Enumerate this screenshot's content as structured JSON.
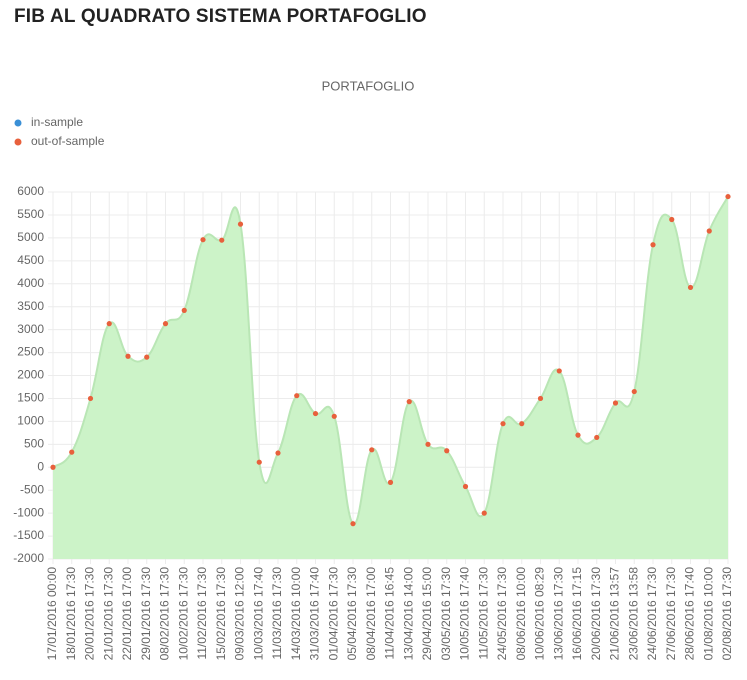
{
  "header": {
    "title": "FIB AL QUADRATO SISTEMA PORTAFOGLIO"
  },
  "chart_data": {
    "type": "line",
    "title": "PORTAFOGLIO",
    "categories": [
      "17/01/2016 00:00",
      "18/01/2016 17:30",
      "20/01/2016 17:30",
      "21/01/2016 17:30",
      "22/01/2016 17:00",
      "29/01/2016 17:30",
      "08/02/2016 17:30",
      "10/02/2016 17:30",
      "11/02/2016 17:30",
      "15/02/2016 17:30",
      "09/03/2016 12:00",
      "10/03/2016 17:40",
      "11/03/2016 17:30",
      "14/03/2016 10:00",
      "31/03/2016 17:40",
      "01/04/2016 17:30",
      "05/04/2016 17:30",
      "08/04/2016 17:00",
      "11/04/2016 16:45",
      "13/04/2016 14:00",
      "29/04/2016 15:00",
      "03/05/2016 17:30",
      "10/05/2016 17:40",
      "11/05/2016 17:30",
      "24/05/2016 17:30",
      "08/06/2016 10:00",
      "10/06/2016 08:29",
      "13/06/2016 17:30",
      "16/06/2016 17:15",
      "20/06/2016 17:30",
      "21/06/2016 13:57",
      "23/06/2016 13:58",
      "24/06/2016 17:30",
      "27/06/2016 17:30",
      "28/06/2016 17:40",
      "01/08/2016 10:00",
      "02/08/2016 17:30"
    ],
    "series": [
      {
        "name": "in-sample",
        "color": "#3a8fd6",
        "values": [
          null,
          null,
          null,
          null,
          null,
          null,
          null,
          null,
          null,
          null,
          null,
          null,
          null,
          null,
          null,
          null,
          null,
          null,
          null,
          null,
          null,
          null,
          null,
          null,
          null,
          null,
          null,
          null,
          null,
          null,
          null,
          null,
          null,
          null,
          null,
          null,
          null
        ]
      },
      {
        "name": "out-of-sample",
        "color": "#e8603c",
        "fill": "#ccf3c8",
        "values": [
          0,
          330,
          1500,
          3130,
          2420,
          2400,
          3130,
          3420,
          4960,
          4950,
          5300,
          110,
          310,
          1560,
          1170,
          1110,
          -1230,
          380,
          -330,
          1430,
          500,
          360,
          -420,
          -1000,
          950,
          950,
          1500,
          2100,
          700,
          650,
          1400,
          1650,
          4850,
          5400,
          3920,
          5150,
          5900
        ]
      }
    ],
    "ylim": [
      -2000,
      6000
    ],
    "yticks": [
      -2000,
      -1500,
      -1000,
      -500,
      0,
      500,
      1000,
      1500,
      2000,
      2500,
      3000,
      3500,
      4000,
      4500,
      5000,
      5500,
      6000
    ],
    "grid": true
  }
}
